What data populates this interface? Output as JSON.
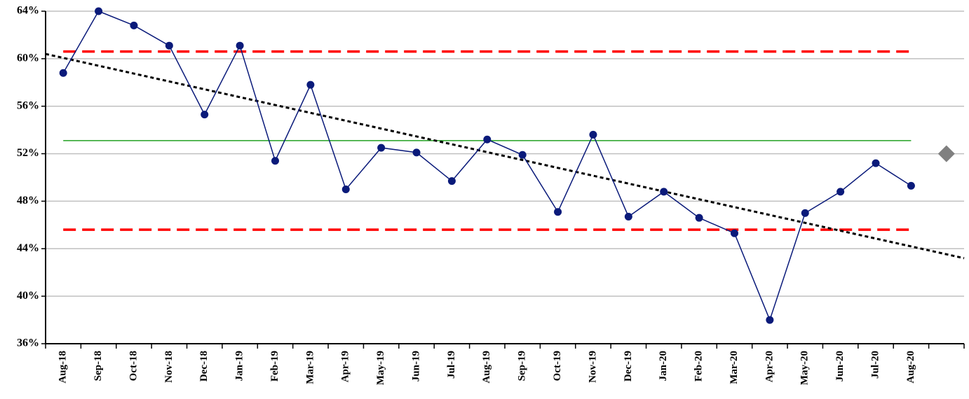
{
  "chart_data": {
    "type": "line",
    "categories": [
      "Aug-18",
      "Sep-18",
      "Oct-18",
      "Nov-18",
      "Dec-18",
      "Jan-19",
      "Feb-19",
      "Mar-19",
      "Apr-19",
      "May-19",
      "Jun-19",
      "Jul-19",
      "Aug-19",
      "Sep-19",
      "Oct-19",
      "Nov-19",
      "Dec-19",
      "Jan-20",
      "Feb-20",
      "Mar-20",
      "Apr-20",
      "May-20",
      "Jun-20",
      "Jul-20",
      "Aug-20",
      null
    ],
    "series": [
      {
        "color": "#0a1a7a",
        "marker": "circle",
        "values": [
          58.8,
          64,
          62.8,
          61.1,
          55.3,
          61.1,
          51.4,
          57.8,
          49.0,
          52.5,
          52.1,
          49.7,
          53.2,
          51.9,
          47.1,
          53.6,
          46.7,
          48.8,
          46.6,
          45.3,
          38.0,
          47.0,
          48.8,
          51.2,
          49.3,
          null
        ]
      },
      {
        "color": "#808080",
        "marker": "diamond",
        "values": [
          null,
          null,
          null,
          null,
          null,
          null,
          null,
          null,
          null,
          null,
          null,
          null,
          null,
          null,
          null,
          null,
          null,
          null,
          null,
          null,
          null,
          null,
          null,
          null,
          null,
          52
        ]
      }
    ],
    "reference_lines": [
      {
        "value": 60.6,
        "color": "#ff0000",
        "style": "dashed"
      },
      {
        "value": 53.1,
        "color": "#22a022",
        "style": "solid"
      },
      {
        "value": 45.6,
        "color": "#ff0000",
        "style": "dashed"
      }
    ],
    "trend_line": {
      "color": "#000000",
      "style": "dotted",
      "values": [
        60.4,
        43.2
      ]
    },
    "ylim": [
      36,
      64
    ],
    "yticks": [
      {
        "value": 36,
        "label": "36%"
      },
      {
        "value": 40,
        "label": "40%"
      },
      {
        "value": 44,
        "label": "44%"
      },
      {
        "value": 48,
        "label": "48%"
      },
      {
        "value": 52,
        "label": "52%"
      },
      {
        "value": 56,
        "label": "56%"
      },
      {
        "value": 60,
        "label": "60%"
      },
      {
        "value": 64,
        "label": "64%"
      }
    ],
    "grid": true
  }
}
